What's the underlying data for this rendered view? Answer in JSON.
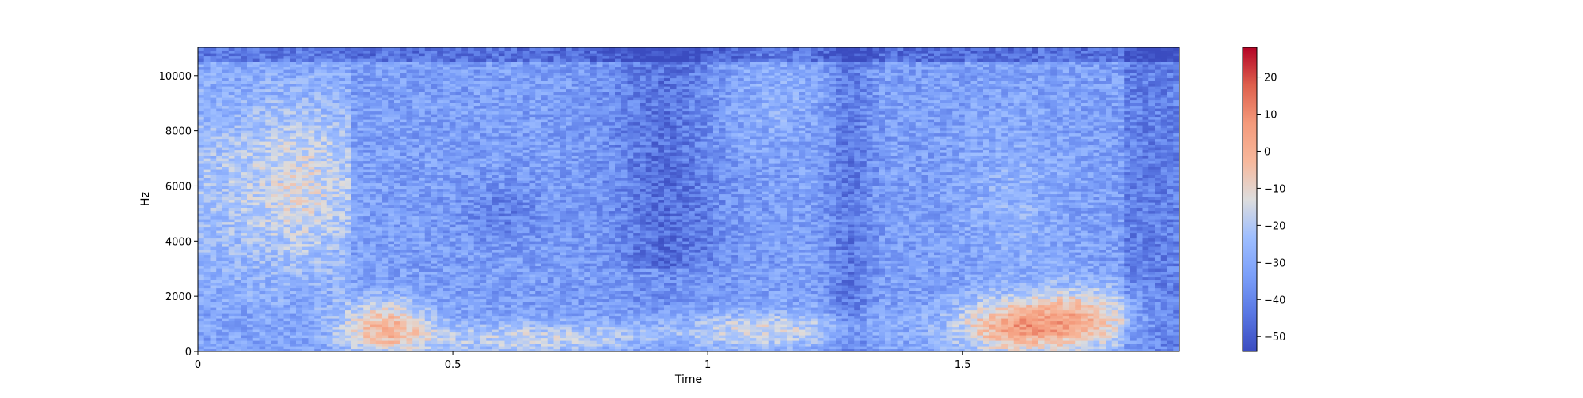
{
  "chart_data": {
    "type": "heatmap",
    "title": "",
    "xlabel": "Time",
    "ylabel": "Hz",
    "xlim": [
      0,
      1.925
    ],
    "ylim": [
      0,
      11025
    ],
    "x_ticks": [
      0,
      0.5,
      1,
      1.5
    ],
    "x_tick_labels": [
      "0",
      "0.5",
      "1",
      "1.5"
    ],
    "y_ticks": [
      0,
      2000,
      4000,
      6000,
      8000,
      10000
    ],
    "y_tick_labels": [
      "0",
      "2000",
      "4000",
      "6000",
      "8000",
      "10000"
    ],
    "colormap": "coolwarm",
    "colors": {
      "low": "#3b4cc0",
      "mid": "#dddddd",
      "high": "#b40426"
    },
    "colorbar": {
      "range": [
        -54,
        28
      ],
      "ticks": [
        -50,
        -40,
        -30,
        -20,
        -10,
        0,
        10,
        20
      ],
      "tick_labels": [
        "−50",
        "−40",
        "−30",
        "−20",
        "−10",
        "0",
        "10",
        "20"
      ]
    },
    "grid": false
  }
}
